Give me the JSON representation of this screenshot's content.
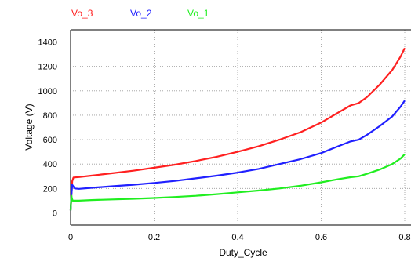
{
  "chart_data": {
    "type": "line",
    "title": "",
    "xlabel": "Duty_Cycle",
    "ylabel": "Voltage (V)",
    "xlim": [
      0,
      0.8
    ],
    "ylim": [
      -100,
      1500
    ],
    "x_ticks": [
      "0",
      "0.2",
      "0.4",
      "0.6",
      "0.8"
    ],
    "x_tick_values": [
      0,
      0.2,
      0.4,
      0.6,
      0.8
    ],
    "y_ticks": [
      "0",
      "200",
      "400",
      "600",
      "800",
      "1000",
      "1200",
      "1400"
    ],
    "y_tick_values": [
      0,
      200,
      400,
      600,
      800,
      1000,
      1200,
      1400
    ],
    "grid": true,
    "legend_position": "top-left, above plot",
    "series": [
      {
        "name": "Vo_3",
        "color": "#ff2020",
        "points": [
          [
            0,
            20
          ],
          [
            0.002,
            150
          ],
          [
            0.004,
            260
          ],
          [
            0.007,
            290
          ],
          [
            0.02,
            293
          ],
          [
            0.05,
            305
          ],
          [
            0.1,
            325
          ],
          [
            0.15,
            345
          ],
          [
            0.2,
            370
          ],
          [
            0.25,
            395
          ],
          [
            0.3,
            425
          ],
          [
            0.35,
            460
          ],
          [
            0.4,
            500
          ],
          [
            0.45,
            545
          ],
          [
            0.5,
            600
          ],
          [
            0.55,
            660
          ],
          [
            0.6,
            740
          ],
          [
            0.64,
            820
          ],
          [
            0.67,
            880
          ],
          [
            0.69,
            900
          ],
          [
            0.71,
            950
          ],
          [
            0.74,
            1050
          ],
          [
            0.77,
            1170
          ],
          [
            0.79,
            1280
          ],
          [
            0.8,
            1350
          ]
        ]
      },
      {
        "name": "Vo_2",
        "color": "#2020ff",
        "points": [
          [
            0,
            20
          ],
          [
            0.002,
            150
          ],
          [
            0.004,
            230
          ],
          [
            0.007,
            215
          ],
          [
            0.01,
            200
          ],
          [
            0.02,
            197
          ],
          [
            0.05,
            205
          ],
          [
            0.1,
            218
          ],
          [
            0.15,
            230
          ],
          [
            0.2,
            245
          ],
          [
            0.25,
            262
          ],
          [
            0.3,
            283
          ],
          [
            0.35,
            305
          ],
          [
            0.4,
            330
          ],
          [
            0.45,
            360
          ],
          [
            0.5,
            400
          ],
          [
            0.55,
            440
          ],
          [
            0.6,
            490
          ],
          [
            0.64,
            545
          ],
          [
            0.67,
            585
          ],
          [
            0.69,
            600
          ],
          [
            0.71,
            640
          ],
          [
            0.74,
            710
          ],
          [
            0.77,
            790
          ],
          [
            0.79,
            870
          ],
          [
            0.8,
            920
          ]
        ]
      },
      {
        "name": "Vo_1",
        "color": "#20ee20",
        "points": [
          [
            0,
            20
          ],
          [
            0.002,
            140
          ],
          [
            0.003,
            120
          ],
          [
            0.005,
            100
          ],
          [
            0.02,
            100
          ],
          [
            0.05,
            105
          ],
          [
            0.1,
            110
          ],
          [
            0.15,
            115
          ],
          [
            0.2,
            122
          ],
          [
            0.25,
            130
          ],
          [
            0.3,
            140
          ],
          [
            0.35,
            153
          ],
          [
            0.4,
            168
          ],
          [
            0.45,
            183
          ],
          [
            0.5,
            200
          ],
          [
            0.55,
            222
          ],
          [
            0.6,
            250
          ],
          [
            0.64,
            275
          ],
          [
            0.67,
            292
          ],
          [
            0.69,
            300
          ],
          [
            0.71,
            320
          ],
          [
            0.74,
            355
          ],
          [
            0.77,
            400
          ],
          [
            0.79,
            445
          ],
          [
            0.8,
            480
          ]
        ]
      }
    ]
  }
}
